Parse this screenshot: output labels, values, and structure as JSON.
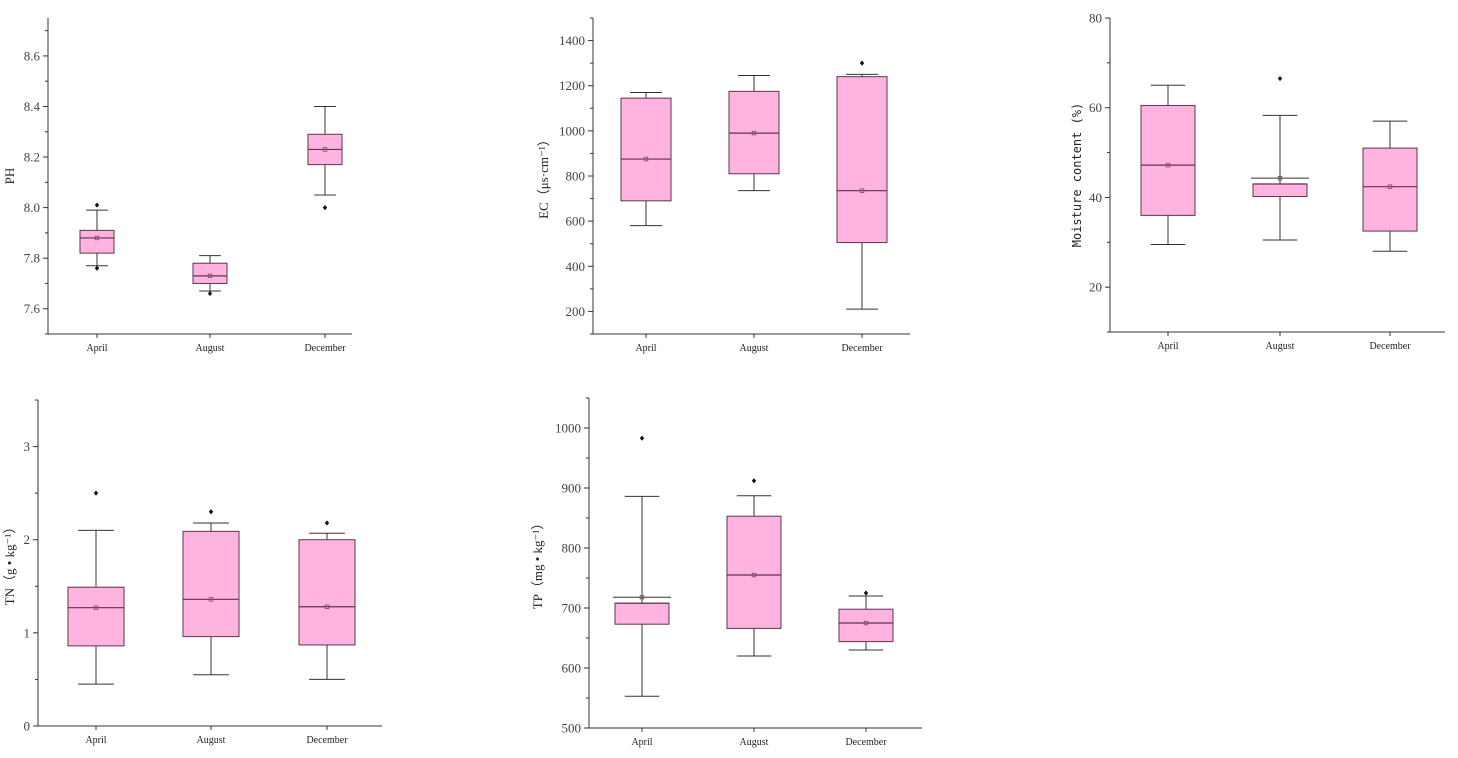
{
  "box_color": "#ffb3de",
  "chart_data": [
    {
      "type": "box",
      "id": "ph",
      "ylabel": "PH",
      "ylim": [
        7.5,
        8.75
      ],
      "yticks": [
        7.6,
        7.8,
        8.0,
        8.2,
        8.4,
        8.6
      ],
      "ytick_labels": [
        "7.6",
        "7.8",
        "8.0",
        "8.2",
        "8.4",
        "8.6"
      ],
      "minor_ticks": true,
      "categories": [
        "April",
        "August",
        "December"
      ],
      "boxes": [
        {
          "min": 7.77,
          "q1": 7.82,
          "median": 7.88,
          "q3": 7.91,
          "max": 7.99,
          "mean": 7.88,
          "outliers": [
            7.76,
            8.01
          ]
        },
        {
          "min": 7.67,
          "q1": 7.7,
          "median": 7.73,
          "q3": 7.78,
          "max": 7.81,
          "mean": 7.73,
          "outliers": [
            7.66
          ]
        },
        {
          "min": 8.05,
          "q1": 8.17,
          "median": 8.23,
          "q3": 8.29,
          "max": 8.4,
          "mean": 8.23,
          "outliers": [
            8.0
          ]
        }
      ]
    },
    {
      "type": "box",
      "id": "ec",
      "ylabel": "EC（μs·cm⁻¹）",
      "ylim": [
        100,
        1500
      ],
      "yticks": [
        200,
        400,
        600,
        800,
        1000,
        1200,
        1400
      ],
      "ytick_labels": [
        "200",
        "400",
        "600",
        "800",
        "1000",
        "1200",
        "1400"
      ],
      "minor_ticks": true,
      "categories": [
        "April",
        "August",
        "December"
      ],
      "boxes": [
        {
          "min": 580,
          "q1": 690,
          "median": 875,
          "q3": 1145,
          "max": 1170,
          "mean": 875,
          "outliers": []
        },
        {
          "min": 735,
          "q1": 810,
          "median": 990,
          "q3": 1175,
          "max": 1245,
          "mean": 990,
          "outliers": []
        },
        {
          "min": 210,
          "q1": 505,
          "median": 735,
          "q3": 1240,
          "max": 1250,
          "mean": 735,
          "outliers": [
            1300
          ]
        }
      ]
    },
    {
      "type": "box",
      "id": "moisture",
      "ylabel": "Moisture content (%)",
      "ylim": [
        10,
        80
      ],
      "yticks": [
        20,
        40,
        60,
        80
      ],
      "ytick_labels": [
        "20",
        "40",
        "60",
        "80"
      ],
      "minor_ticks": true,
      "categories": [
        "April",
        "August",
        "December"
      ],
      "boxes": [
        {
          "min": 29.5,
          "q1": 36.0,
          "median": 47.2,
          "q3": 60.5,
          "max": 65.0,
          "mean": 47.2,
          "outliers": []
        },
        {
          "min": 30.5,
          "q1": 40.2,
          "median": 43.0,
          "q3": 43.0,
          "max": 58.3,
          "mean": 44.3,
          "outliers": [
            66.5
          ],
          "mean_line": true
        },
        {
          "min": 28.0,
          "q1": 32.5,
          "median": 42.4,
          "q3": 51.0,
          "max": 57.0,
          "mean": 42.4,
          "outliers": []
        }
      ]
    },
    {
      "type": "box",
      "id": "tn",
      "ylabel": "TN（g • kg⁻¹）",
      "ylim": [
        0,
        3.5
      ],
      "yticks": [
        0,
        1,
        2,
        3
      ],
      "ytick_labels": [
        "0",
        "1",
        "2",
        "3"
      ],
      "minor_ticks": true,
      "categories": [
        "April",
        "August",
        "December"
      ],
      "boxes": [
        {
          "min": 0.45,
          "q1": 0.86,
          "median": 1.27,
          "q3": 1.49,
          "max": 2.1,
          "mean": 1.27,
          "outliers": [
            2.5
          ]
        },
        {
          "min": 0.55,
          "q1": 0.96,
          "median": 1.36,
          "q3": 2.09,
          "max": 2.18,
          "mean": 1.36,
          "outliers": [
            2.3
          ]
        },
        {
          "min": 0.5,
          "q1": 0.87,
          "median": 1.28,
          "q3": 2.0,
          "max": 2.07,
          "mean": 1.28,
          "outliers": [
            2.18
          ]
        }
      ]
    },
    {
      "type": "box",
      "id": "tp",
      "ylabel": "TP（mg • kg⁻¹）",
      "ylim": [
        500,
        1050
      ],
      "yticks": [
        500,
        600,
        700,
        800,
        900,
        1000
      ],
      "ytick_labels": [
        "500",
        "600",
        "700",
        "800",
        "900",
        "1000"
      ],
      "minor_ticks": true,
      "categories": [
        "April",
        "August",
        "December"
      ],
      "boxes": [
        {
          "min": 553,
          "q1": 673,
          "median": 708,
          "q3": 708,
          "max": 886,
          "mean": 718,
          "outliers": [
            983
          ],
          "mean_line": true
        },
        {
          "min": 620,
          "q1": 666,
          "median": 755,
          "q3": 853,
          "max": 887,
          "mean": 755,
          "outliers": [
            912
          ]
        },
        {
          "min": 630,
          "q1": 644,
          "median": 675,
          "q3": 698,
          "max": 720,
          "mean": 675,
          "outliers": [
            725
          ]
        }
      ]
    }
  ]
}
